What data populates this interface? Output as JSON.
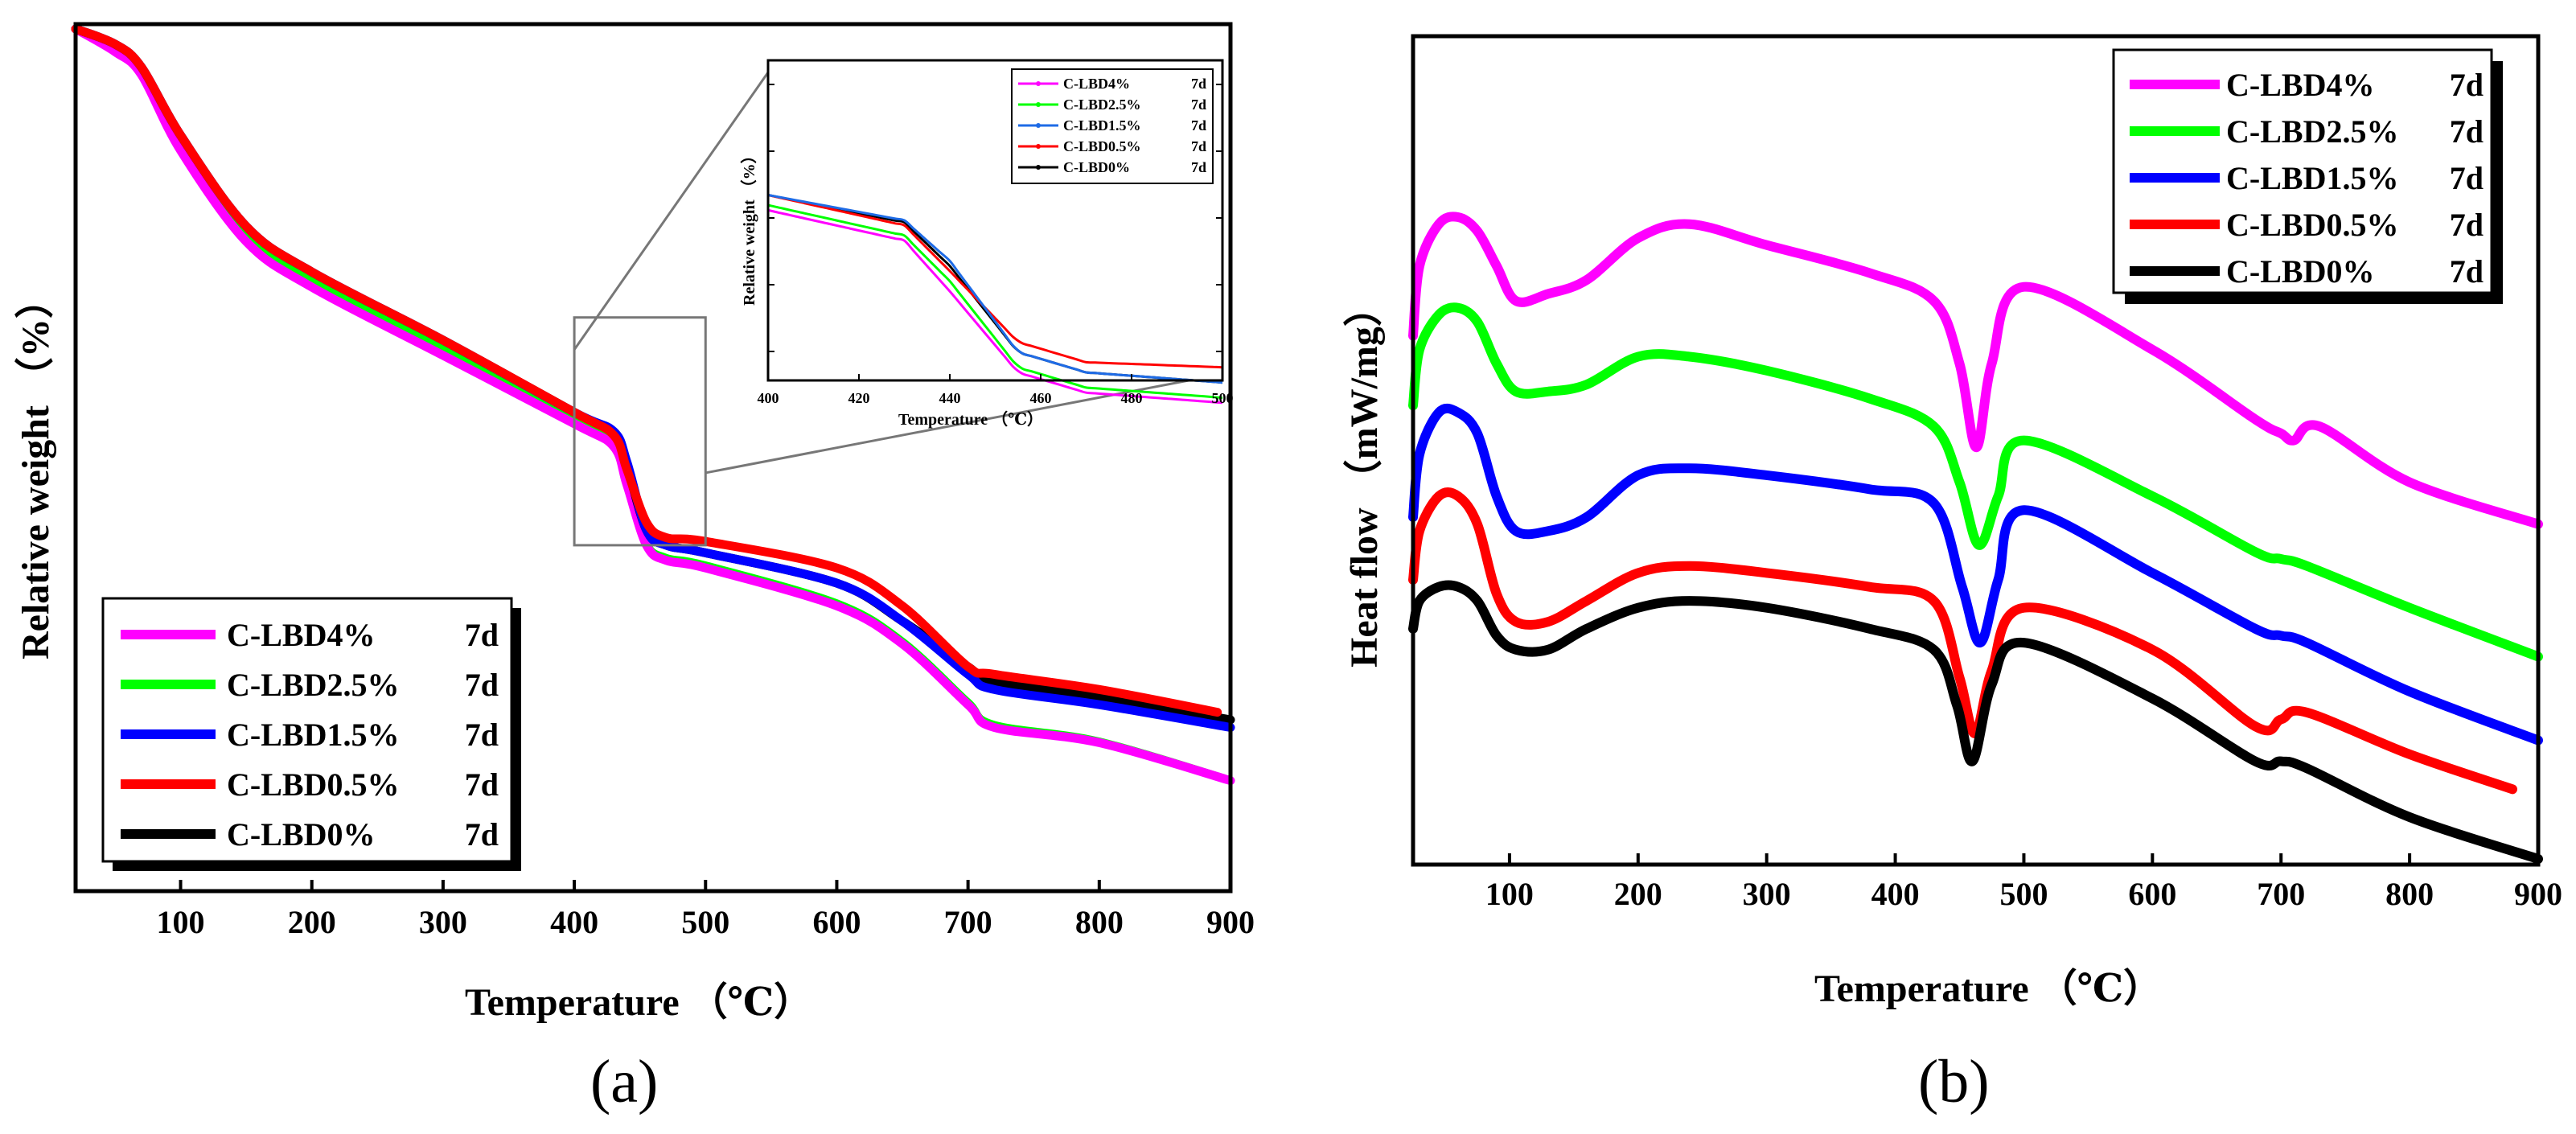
{
  "colors": {
    "C-LBD4%": "#ff00ff",
    "C-LBD2.5%": "#00ff00",
    "C-LBD1.5%": "#0000ff",
    "C-LBD0.5%": "#ff0000",
    "C-LBD0%": "#000000",
    "inset_blue": "#1e6be6"
  },
  "chart_data": [
    {
      "panel": "(a)",
      "type": "line",
      "title": "",
      "xlabel": "Temperature （℃）",
      "ylabel": "Relative weight （%）",
      "xlim": [
        20,
        900
      ],
      "ylim": [
        0,
        100
      ],
      "xticks": [
        "100",
        "200",
        "300",
        "400",
        "500",
        "600",
        "700",
        "800",
        "900"
      ],
      "xtick_values": [
        100,
        200,
        300,
        400,
        500,
        600,
        700,
        800,
        900
      ],
      "legend": {
        "placement": "bottom-left",
        "entries": [
          {
            "name": "C-LBD4%",
            "suffix": "7d"
          },
          {
            "name": "C-LBD2.5%",
            "suffix": "7d"
          },
          {
            "name": "C-LBD1.5%",
            "suffix": "7d"
          },
          {
            "name": "C-LBD0.5%",
            "suffix": "7d"
          },
          {
            "name": "C-LBD0%",
            "suffix": "7d"
          }
        ]
      },
      "series": [
        {
          "name": "C-LBD4%",
          "x": [
            20,
            50,
            70,
            100,
            150,
            200,
            300,
            400,
            430,
            440,
            455,
            470,
            500,
            600,
            650,
            700,
            720,
            800,
            900
          ],
          "y": [
            100,
            97,
            94,
            84,
            72,
            66,
            57,
            48,
            45,
            40,
            32,
            30,
            29,
            24,
            19,
            11,
            8,
            6,
            1
          ]
        },
        {
          "name": "C-LBD2.5%",
          "x": [
            20,
            50,
            70,
            100,
            150,
            200,
            300,
            400,
            430,
            440,
            455,
            470,
            500,
            600,
            650,
            700,
            720,
            800,
            900
          ],
          "y": [
            100,
            97.5,
            94.5,
            85,
            73,
            67,
            58,
            48.5,
            45.5,
            41,
            32.5,
            30.5,
            29.5,
            24.5,
            19.5,
            11.5,
            8.5,
            6.3,
            1.2
          ]
        },
        {
          "name": "C-LBD1.5%",
          "x": [
            20,
            50,
            70,
            100,
            150,
            200,
            300,
            400,
            430,
            440,
            455,
            470,
            500,
            600,
            650,
            700,
            720,
            800,
            900
          ],
          "y": [
            100,
            98,
            95,
            86,
            74,
            68,
            59,
            49.5,
            47,
            43,
            34,
            32,
            31,
            27,
            22,
            15,
            13,
            11,
            8
          ]
        },
        {
          "name": "C-LBD0.5%",
          "x": [
            20,
            50,
            70,
            100,
            150,
            200,
            300,
            400,
            430,
            440,
            455,
            470,
            500,
            600,
            650,
            700,
            720,
            800,
            890
          ],
          "y": [
            100,
            98,
            95,
            86,
            74,
            68,
            59,
            49.5,
            46.5,
            42,
            35,
            33,
            32.5,
            29,
            24,
            16,
            15,
            13,
            10
          ]
        },
        {
          "name": "C-LBD0%",
          "x": [
            20,
            50,
            70,
            100,
            150,
            200,
            300,
            400,
            430,
            440,
            455,
            470,
            500,
            600,
            650,
            700,
            720,
            800,
            900
          ],
          "y": [
            100,
            98,
            95,
            86,
            74,
            68,
            59,
            49.5,
            46.8,
            42.5,
            34,
            32,
            31,
            27,
            22,
            16,
            14,
            12,
            9
          ]
        }
      ],
      "inset": {
        "zoom_region": {
          "x": [
            400,
            500
          ],
          "y": [
            32,
            62
          ]
        },
        "xlabel": "Temperature （℃）",
        "ylabel": "Relative weight （%）",
        "xlim": [
          400,
          500
        ],
        "xticks": [
          "400",
          "420",
          "440",
          "460",
          "480",
          "500"
        ],
        "xtick_values": [
          400,
          420,
          440,
          460,
          480,
          500
        ],
        "legend": {
          "placement": "top-right",
          "entries": [
            {
              "name": "C-LBD4%",
              "suffix": "7d"
            },
            {
              "name": "C-LBD2.5%",
              "suffix": "7d"
            },
            {
              "name": "C-LBD1.5%",
              "suffix": "7d"
            },
            {
              "name": "C-LBD0.5%",
              "suffix": "7d"
            },
            {
              "name": "C-LBD0%",
              "suffix": "7d"
            }
          ]
        }
      }
    },
    {
      "panel": "(b)",
      "type": "line",
      "title": "",
      "xlabel": "Temperature （℃）",
      "ylabel": "Heat flow （mW/mg）",
      "xlim": [
        25,
        900
      ],
      "ylim": [
        0,
        100
      ],
      "xticks": [
        "100",
        "200",
        "300",
        "400",
        "500",
        "600",
        "700",
        "800",
        "900"
      ],
      "xtick_values": [
        100,
        200,
        300,
        400,
        500,
        600,
        700,
        800,
        900
      ],
      "legend": {
        "placement": "top-right",
        "entries": [
          {
            "name": "C-LBD4%",
            "suffix": "7d"
          },
          {
            "name": "C-LBD2.5%",
            "suffix": "7d"
          },
          {
            "name": "C-LBD1.5%",
            "suffix": "7d"
          },
          {
            "name": "C-LBD0.5%",
            "suffix": "7d"
          },
          {
            "name": "C-LBD0%",
            "suffix": "7d"
          }
        ]
      },
      "series": [
        {
          "name": "C-LBD4%",
          "x": [
            25,
            30,
            45,
            60,
            75,
            90,
            105,
            130,
            160,
            200,
            240,
            300,
            380,
            430,
            450,
            463,
            475,
            500,
            600,
            680,
            700,
            710,
            730,
            800,
            900
          ],
          "y": [
            68,
            78,
            84,
            85,
            83,
            78,
            73,
            74,
            76,
            82,
            84,
            81,
            77,
            73,
            64,
            52,
            64,
            75,
            66,
            56,
            54,
            53,
            55,
            47,
            41
          ]
        },
        {
          "name": "C-LBD2.5%",
          "x": [
            25,
            30,
            45,
            60,
            75,
            90,
            105,
            130,
            160,
            200,
            240,
            300,
            380,
            430,
            450,
            465,
            480,
            500,
            600,
            680,
            700,
            720,
            800,
            900
          ],
          "y": [
            58,
            66,
            71,
            72,
            70,
            64,
            60,
            60,
            61,
            65,
            65,
            63,
            59,
            55,
            47,
            38,
            45,
            53,
            45,
            37,
            36,
            35,
            29,
            22
          ]
        },
        {
          "name": "C-LBD1.5%",
          "x": [
            25,
            30,
            45,
            60,
            75,
            90,
            105,
            130,
            160,
            200,
            240,
            300,
            380,
            430,
            452,
            466,
            480,
            500,
            600,
            680,
            700,
            720,
            800,
            900
          ],
          "y": [
            42,
            51,
            57,
            57,
            54,
            45,
            40,
            40,
            42,
            48,
            49,
            48,
            46,
            44,
            32,
            24,
            33,
            43,
            34,
            26,
            25,
            24,
            17,
            10
          ]
        },
        {
          "name": "C-LBD0.5%",
          "x": [
            25,
            30,
            45,
            60,
            75,
            90,
            105,
            130,
            160,
            200,
            240,
            300,
            380,
            430,
            450,
            462,
            475,
            500,
            600,
            680,
            700,
            720,
            800,
            880
          ],
          "y": [
            33,
            40,
            45,
            45,
            41,
            31,
            27,
            27,
            30,
            34,
            35,
            34,
            32,
            30,
            19,
            11,
            20,
            29,
            23,
            12,
            13,
            14,
            8,
            3
          ]
        },
        {
          "name": "C-LBD0%",
          "x": [
            25,
            30,
            45,
            60,
            75,
            90,
            105,
            130,
            160,
            200,
            240,
            300,
            380,
            430,
            448,
            460,
            475,
            500,
            600,
            680,
            700,
            720,
            800,
            900
          ],
          "y": [
            26,
            30,
            32,
            32,
            30,
            25,
            23,
            23,
            26,
            29,
            30,
            29,
            26,
            23,
            15,
            7,
            18,
            24,
            16,
            7,
            7,
            6,
            -1,
            -7
          ]
        }
      ]
    }
  ],
  "labels": {
    "panel_a": "(a)",
    "panel_b": "(b)"
  }
}
